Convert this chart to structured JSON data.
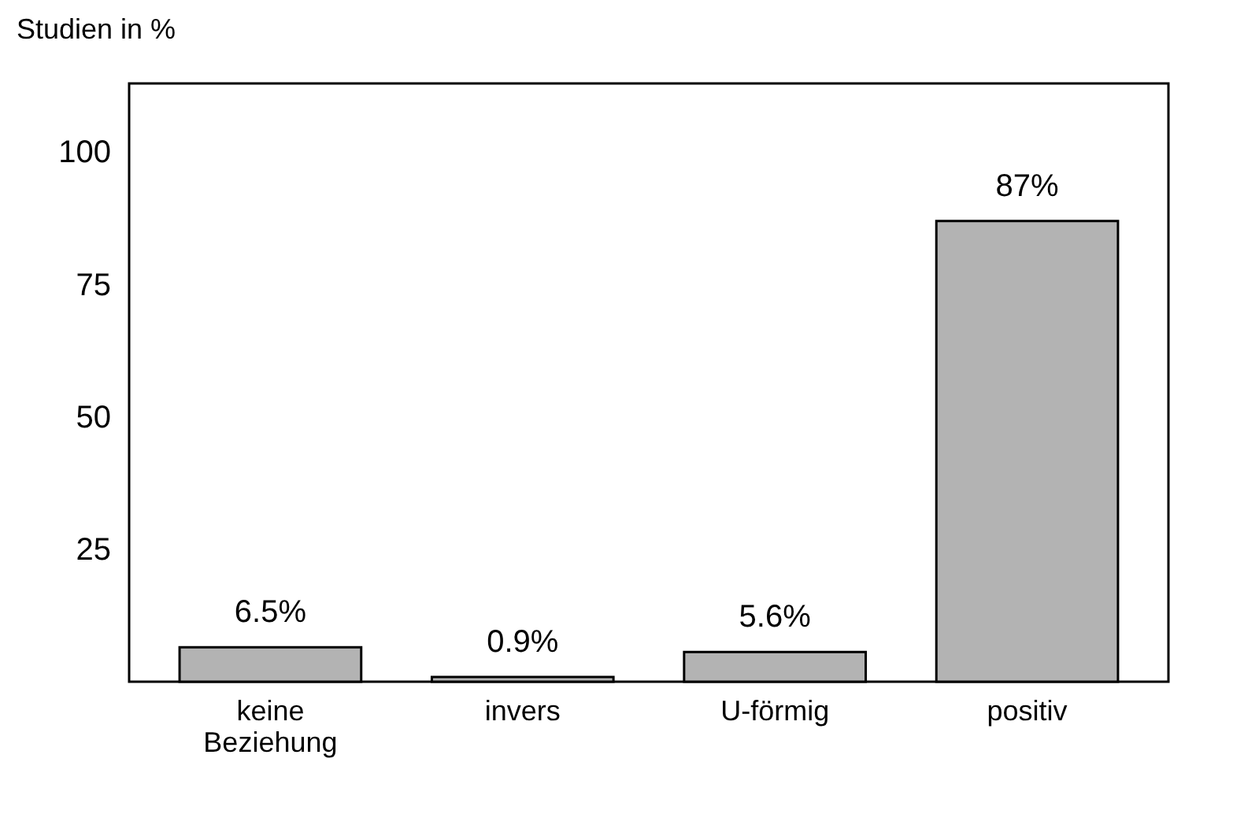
{
  "chart_data": {
    "type": "bar",
    "ylabel": "Studien in %",
    "categories": [
      "keine Beziehung",
      "invers",
      "U-förmig",
      "positiv"
    ],
    "values": [
      6.5,
      0.9,
      5.6,
      87
    ],
    "value_labels": [
      "6.5%",
      "0.9%",
      "5.6%",
      "87%"
    ],
    "color": "#b3b3b3",
    "ylim": [
      0,
      113
    ],
    "yticks": [
      25,
      50,
      75,
      100
    ],
    "grid": false
  }
}
